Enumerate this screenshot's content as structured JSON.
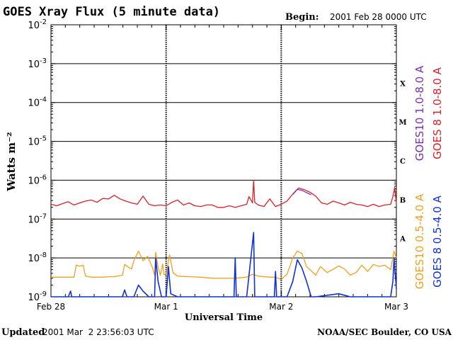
{
  "header": {
    "title": "GOES Xray Flux (5 minute data)",
    "begin_label": "Begin:",
    "begin_value": "2001 Feb 28 0000 UTC"
  },
  "footer": {
    "updated_label": "Updated",
    "updated_value": "2001 Mar  2 23:56:03 UTC",
    "credit": "NOAA/SEC Boulder, CO USA"
  },
  "chart_data": {
    "type": "line",
    "title": "GOES Xray Flux (5 minute data)",
    "xlabel": "Universal Time",
    "ylabel": "Watts m⁻²",
    "yscale": "log",
    "ylim": [
      1e-09,
      0.01
    ],
    "ytick_labels": [
      {
        "base": "10",
        "exp": "-2"
      },
      {
        "base": "10",
        "exp": "-3"
      },
      {
        "base": "10",
        "exp": "-4"
      },
      {
        "base": "10",
        "exp": "-5"
      },
      {
        "base": "10",
        "exp": "-6"
      },
      {
        "base": "10",
        "exp": "-7"
      },
      {
        "base": "10",
        "exp": "-8"
      },
      {
        "base": "10",
        "exp": "-9"
      }
    ],
    "x_days": [
      "Feb 28",
      "Mar 1",
      "Mar 2",
      "Mar 3"
    ],
    "flare_classes": [
      "X",
      "M",
      "C",
      "B",
      "A"
    ],
    "grid": true,
    "legend": [
      {
        "text": "GOES10 1.0-8.0 A",
        "color": "#7a2fb0"
      },
      {
        "text": "GOES 8 1.0-8.0 A",
        "color": "#d8202a"
      },
      {
        "text": "GOES10 0.5-4.0 A",
        "color": "#f0a020"
      },
      {
        "text": "GOES 8 0.5-4.0 A",
        "color": "#1030d8"
      }
    ],
    "series": [
      {
        "name": "GOES 8 1.0-8.0 A",
        "color": "#d8202a",
        "points": [
          [
            0,
            2.4e-07
          ],
          [
            0.05,
            2.2e-07
          ],
          [
            0.1,
            2.5e-07
          ],
          [
            0.15,
            2.8e-07
          ],
          [
            0.2,
            2.3e-07
          ],
          [
            0.25,
            2.6e-07
          ],
          [
            0.3,
            2.9e-07
          ],
          [
            0.35,
            3.1e-07
          ],
          [
            0.4,
            2.7e-07
          ],
          [
            0.45,
            3.4e-07
          ],
          [
            0.5,
            3.3e-07
          ],
          [
            0.55,
            4.1e-07
          ],
          [
            0.6,
            3.3e-07
          ],
          [
            0.65,
            2.9e-07
          ],
          [
            0.7,
            2.6e-07
          ],
          [
            0.75,
            2.4e-07
          ],
          [
            0.8,
            3.9e-07
          ],
          [
            0.85,
            2.4e-07
          ],
          [
            0.9,
            2.2e-07
          ],
          [
            0.95,
            2.3e-07
          ],
          [
            1.0,
            2.2e-07
          ],
          [
            1.05,
            2.7e-07
          ],
          [
            1.1,
            3.1e-07
          ],
          [
            1.15,
            2.3e-07
          ],
          [
            1.2,
            2.6e-07
          ],
          [
            1.25,
            2.2e-07
          ],
          [
            1.3,
            2.1e-07
          ],
          [
            1.35,
            2.3e-07
          ],
          [
            1.4,
            2.3e-07
          ],
          [
            1.45,
            2e-07
          ],
          [
            1.5,
            2e-07
          ],
          [
            1.55,
            2.2e-07
          ],
          [
            1.6,
            2e-07
          ],
          [
            1.65,
            2.2e-07
          ],
          [
            1.7,
            2.4e-07
          ],
          [
            1.72,
            3.8e-07
          ],
          [
            1.75,
            2.6e-07
          ],
          [
            1.76,
            1e-06
          ],
          [
            1.77,
            2.7e-07
          ],
          [
            1.8,
            2.3e-07
          ],
          [
            1.85,
            2.1e-07
          ],
          [
            1.9,
            3.3e-07
          ],
          [
            1.95,
            2.1e-07
          ],
          [
            2.0,
            2.4e-07
          ],
          [
            2.05,
            2.9e-07
          ],
          [
            2.1,
            4.4e-07
          ],
          [
            2.15,
            6.3e-07
          ],
          [
            2.2,
            5.7e-07
          ],
          [
            2.25,
            4.9e-07
          ],
          [
            2.3,
            3.9e-07
          ],
          [
            2.35,
            2.6e-07
          ],
          [
            2.4,
            2.4e-07
          ],
          [
            2.45,
            2.9e-07
          ],
          [
            2.5,
            2.6e-07
          ],
          [
            2.55,
            2.3e-07
          ],
          [
            2.6,
            2.7e-07
          ],
          [
            2.65,
            2.4e-07
          ],
          [
            2.7,
            2.3e-07
          ],
          [
            2.75,
            2.1e-07
          ],
          [
            2.8,
            2.4e-07
          ],
          [
            2.85,
            2.1e-07
          ],
          [
            2.9,
            2.3e-07
          ],
          [
            2.95,
            2.4e-07
          ],
          [
            2.97,
            3.8e-07
          ],
          [
            2.985,
            6.5e-07
          ],
          [
            3.0,
            2.5e-07
          ]
        ]
      },
      {
        "name": "GOES10 1.0-8.0 A",
        "color": "#7a2fb0",
        "points": [
          [
            2.1,
            4.3e-07
          ],
          [
            2.14,
            5.8e-07
          ],
          [
            2.18,
            5.5e-07
          ],
          [
            2.22,
            4.8e-07
          ],
          [
            2.26,
            4.2e-07
          ]
        ]
      },
      {
        "name": "GOES10 0.5-4.0 A",
        "color": "#f0a020",
        "points": [
          [
            0,
            3.2e-09
          ],
          [
            0.1,
            3.2e-09
          ],
          [
            0.2,
            3.2e-09
          ],
          [
            0.22,
            6.5e-09
          ],
          [
            0.25,
            6.1e-09
          ],
          [
            0.28,
            6.5e-09
          ],
          [
            0.3,
            3.4e-09
          ],
          [
            0.35,
            3.2e-09
          ],
          [
            0.4,
            3.2e-09
          ],
          [
            0.45,
            3.2e-09
          ],
          [
            0.5,
            3.3e-09
          ],
          [
            0.55,
            3.3e-09
          ],
          [
            0.62,
            3.6e-09
          ],
          [
            0.64,
            6.8e-09
          ],
          [
            0.68,
            5.6e-09
          ],
          [
            0.7,
            5.2e-09
          ],
          [
            0.72,
            8.5e-09
          ],
          [
            0.76,
            1.5e-08
          ],
          [
            0.8,
            8.5e-09
          ],
          [
            0.84,
            1.1e-08
          ],
          [
            0.88,
            5.8e-09
          ],
          [
            0.9,
            3.6e-09
          ],
          [
            0.91,
            1.4e-08
          ],
          [
            0.93,
            5.8e-09
          ],
          [
            0.95,
            3.6e-09
          ],
          [
            0.97,
            7e-09
          ],
          [
            0.98,
            3.8e-09
          ],
          [
            1.0,
            3.6e-09
          ],
          [
            1.03,
            1.2e-08
          ],
          [
            1.06,
            4.2e-09
          ],
          [
            1.1,
            3.4e-09
          ],
          [
            1.2,
            3.3e-09
          ],
          [
            1.3,
            3.2e-09
          ],
          [
            1.4,
            3e-09
          ],
          [
            1.5,
            3e-09
          ],
          [
            1.6,
            3e-09
          ],
          [
            1.7,
            3.2e-09
          ],
          [
            1.75,
            3.8e-09
          ],
          [
            1.8,
            3.4e-09
          ],
          [
            1.9,
            3.2e-09
          ],
          [
            1.95,
            3.2e-09
          ],
          [
            2.0,
            2.8e-09
          ],
          [
            2.05,
            3.8e-09
          ],
          [
            2.1,
            1e-08
          ],
          [
            2.14,
            1.5e-08
          ],
          [
            2.18,
            1.3e-08
          ],
          [
            2.22,
            6e-09
          ],
          [
            2.28,
            4.1e-09
          ],
          [
            2.3,
            3.6e-09
          ],
          [
            2.34,
            6e-09
          ],
          [
            2.4,
            4.2e-09
          ],
          [
            2.5,
            6.2e-09
          ],
          [
            2.55,
            5.2e-09
          ],
          [
            2.6,
            3.6e-09
          ],
          [
            2.65,
            4.2e-09
          ],
          [
            2.7,
            6.5e-09
          ],
          [
            2.75,
            4.5e-09
          ],
          [
            2.8,
            6.8e-09
          ],
          [
            2.85,
            6e-09
          ],
          [
            2.9,
            6.5e-09
          ],
          [
            2.95,
            5e-09
          ],
          [
            2.98,
            1.5e-08
          ],
          [
            3.0,
            1e-08
          ]
        ]
      },
      {
        "name": "GOES 8 0.5-4.0 A",
        "color": "#1030d8",
        "points": [
          [
            0,
            1e-09
          ],
          [
            0.1,
            1e-09
          ],
          [
            0.15,
            1e-09
          ],
          [
            0.17,
            1.4e-09
          ],
          [
            0.18,
            1e-09
          ],
          [
            0.4,
            1e-09
          ],
          [
            0.62,
            1e-09
          ],
          [
            0.64,
            1.5e-09
          ],
          [
            0.66,
            1e-09
          ],
          [
            0.72,
            1e-09
          ],
          [
            0.76,
            2e-09
          ],
          [
            0.8,
            1.4e-09
          ],
          [
            0.85,
            1e-09
          ],
          [
            0.9,
            1e-09
          ],
          [
            0.91,
            1e-08
          ],
          [
            0.93,
            2.5e-09
          ],
          [
            0.96,
            1e-09
          ],
          [
            1.0,
            1e-09
          ],
          [
            1.02,
            6e-09
          ],
          [
            1.04,
            1.2e-09
          ],
          [
            1.1,
            1e-09
          ],
          [
            1.4,
            1e-09
          ],
          [
            1.5,
            1e-09
          ],
          [
            1.59,
            1e-09
          ],
          [
            1.6,
            1e-08
          ],
          [
            1.61,
            1e-09
          ],
          [
            1.7,
            1e-09
          ],
          [
            1.76,
            4.5e-08
          ],
          [
            1.77,
            1e-09
          ],
          [
            1.8,
            1e-09
          ],
          [
            1.94,
            1e-09
          ],
          [
            1.95,
            4.5e-09
          ],
          [
            1.96,
            1e-09
          ],
          [
            2.05,
            1e-09
          ],
          [
            2.1,
            2.5e-09
          ],
          [
            2.14,
            9e-09
          ],
          [
            2.18,
            5.5e-09
          ],
          [
            2.22,
            2.5e-09
          ],
          [
            2.26,
            1e-09
          ],
          [
            2.3,
            1e-09
          ],
          [
            2.5,
            1.2e-09
          ],
          [
            2.6,
            1e-09
          ],
          [
            2.8,
            1e-09
          ],
          [
            2.95,
            1e-09
          ],
          [
            2.97,
            2.5e-09
          ],
          [
            2.98,
            9.5e-09
          ],
          [
            3.0,
            1.6e-09
          ]
        ]
      }
    ]
  }
}
